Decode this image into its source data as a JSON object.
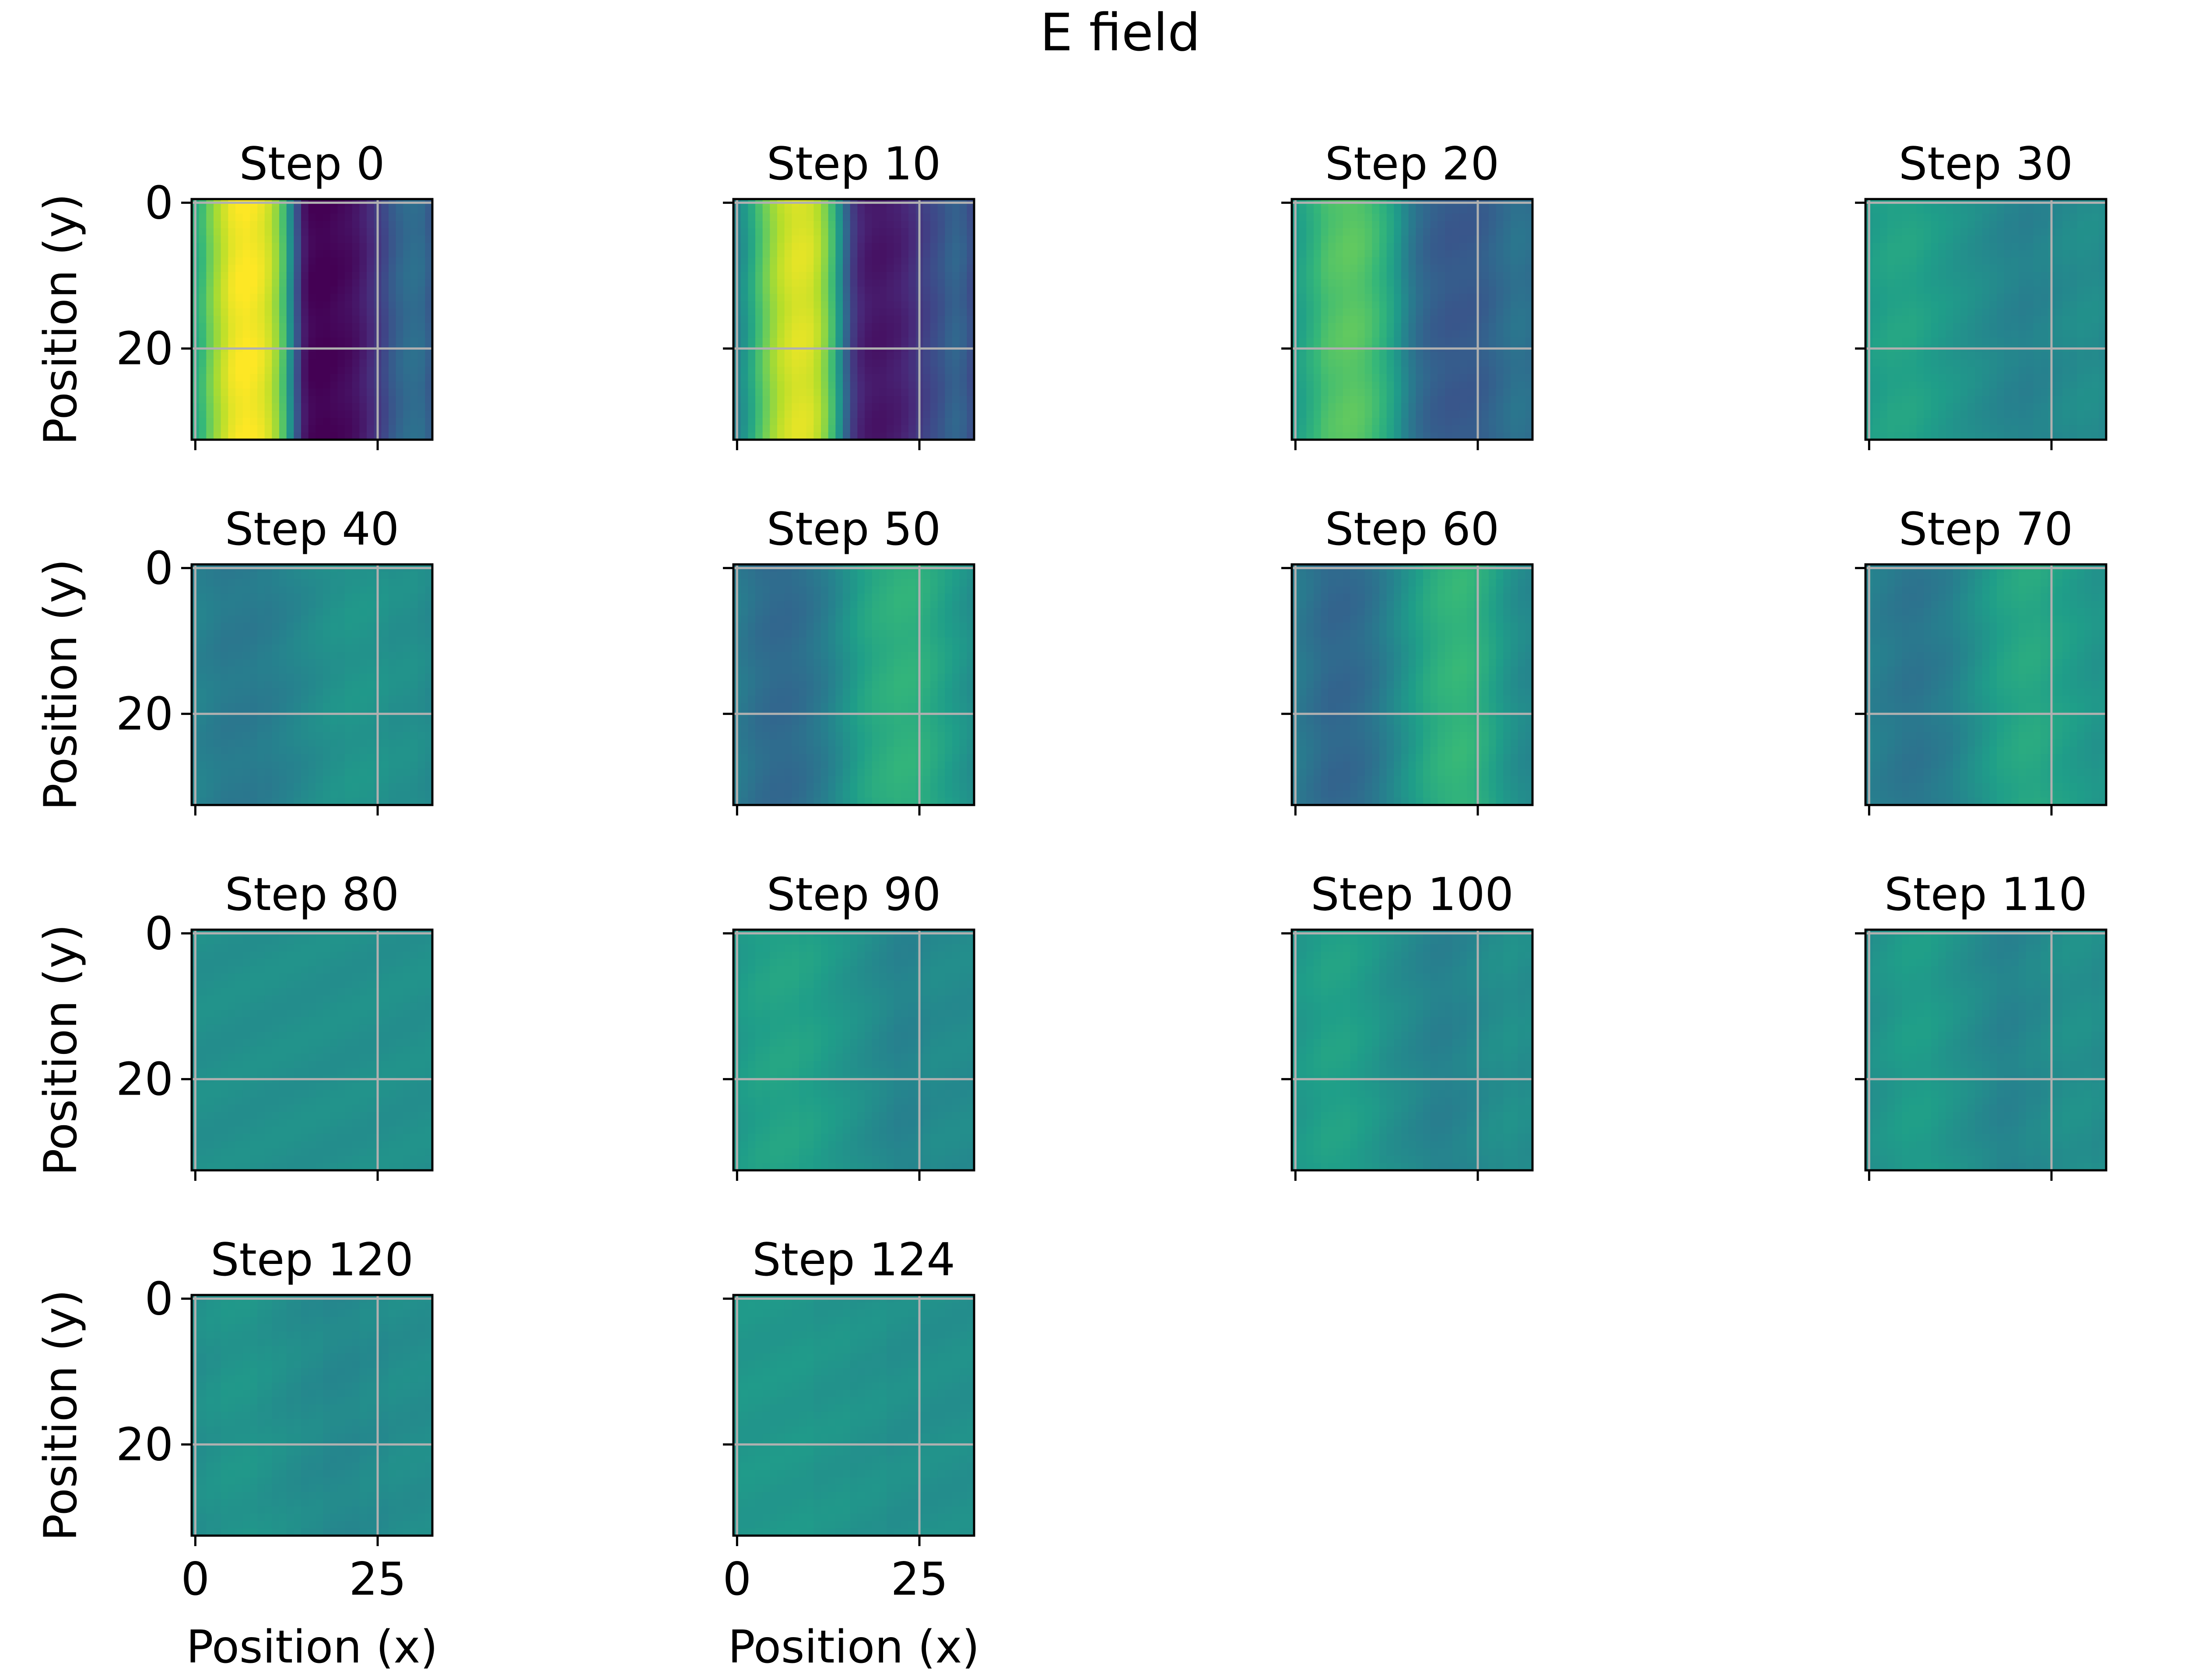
{
  "figure": {
    "title": "E field",
    "colormap": "viridis",
    "grid_color": "#b0b0b0",
    "axis_color": "#000000"
  },
  "chart_data": [
    {
      "type": "heatmap",
      "title": "Step 0",
      "xlabel": "",
      "ylabel": "Position (y)",
      "xlim": [
        -0.5,
        32.5
      ],
      "ylim": [
        32.5,
        -0.5
      ],
      "x_ticks": [
        0,
        25
      ],
      "y_ticks": [
        0,
        20
      ],
      "x_ticklabels_shown": false,
      "y_ticklabels_shown": true,
      "grid": true,
      "column_profile": [
        0.62,
        0.68,
        0.78,
        0.86,
        0.92,
        0.97,
        0.99,
        1.0,
        0.99,
        0.97,
        0.93,
        0.85,
        0.72,
        0.5,
        0.25,
        0.06,
        0.01,
        0.0,
        0.0,
        0.01,
        0.02,
        0.03,
        0.05,
        0.08,
        0.12,
        0.17,
        0.22,
        0.28,
        0.32,
        0.35,
        0.36,
        0.35,
        0.3
      ]
    },
    {
      "type": "heatmap",
      "title": "Step 10",
      "xlabel": "",
      "ylabel": "",
      "xlim": [
        -0.5,
        32.5
      ],
      "ylim": [
        32.5,
        -0.5
      ],
      "x_ticks": [
        0,
        25
      ],
      "y_ticks": [
        0,
        20
      ],
      "x_ticklabels_shown": false,
      "y_ticklabels_shown": false,
      "grid": true,
      "column_profile": [
        0.45,
        0.52,
        0.6,
        0.7,
        0.78,
        0.85,
        0.9,
        0.93,
        0.95,
        0.95,
        0.94,
        0.9,
        0.82,
        0.7,
        0.52,
        0.32,
        0.17,
        0.1,
        0.07,
        0.06,
        0.06,
        0.07,
        0.08,
        0.1,
        0.13,
        0.17,
        0.2,
        0.23,
        0.26,
        0.3,
        0.32,
        0.3,
        0.25
      ]
    },
    {
      "type": "heatmap",
      "title": "Step 20",
      "xlabel": "",
      "ylabel": "",
      "xlim": [
        -0.5,
        32.5
      ],
      "ylim": [
        32.5,
        -0.5
      ],
      "x_ticks": [
        0,
        25
      ],
      "y_ticks": [
        0,
        20
      ],
      "x_ticklabels_shown": false,
      "y_ticklabels_shown": false,
      "grid": true,
      "column_profile": [
        0.55,
        0.58,
        0.62,
        0.66,
        0.7,
        0.72,
        0.73,
        0.74,
        0.74,
        0.73,
        0.71,
        0.68,
        0.64,
        0.59,
        0.53,
        0.46,
        0.4,
        0.35,
        0.32,
        0.3,
        0.29,
        0.28,
        0.28,
        0.28,
        0.28,
        0.29,
        0.3,
        0.32,
        0.34,
        0.36,
        0.38,
        0.38,
        0.37
      ]
    },
    {
      "type": "heatmap",
      "title": "Step 30",
      "xlabel": "",
      "ylabel": "",
      "xlim": [
        -0.5,
        32.5
      ],
      "ylim": [
        32.5,
        -0.5
      ],
      "x_ticks": [
        0,
        25
      ],
      "y_ticks": [
        0,
        20
      ],
      "x_ticklabels_shown": false,
      "y_ticklabels_shown": false,
      "grid": true,
      "column_profile": [
        0.55,
        0.56,
        0.57,
        0.58,
        0.58,
        0.58,
        0.58,
        0.57,
        0.56,
        0.55,
        0.54,
        0.53,
        0.52,
        0.51,
        0.5,
        0.49,
        0.48,
        0.47,
        0.46,
        0.45,
        0.45,
        0.44,
        0.44,
        0.45,
        0.45,
        0.46,
        0.47,
        0.48,
        0.48,
        0.49,
        0.49,
        0.49,
        0.48
      ]
    },
    {
      "type": "heatmap",
      "title": "Step 40",
      "xlabel": "",
      "ylabel": "Position (y)",
      "xlim": [
        -0.5,
        32.5
      ],
      "ylim": [
        32.5,
        -0.5
      ],
      "x_ticks": [
        0,
        25
      ],
      "y_ticks": [
        0,
        20
      ],
      "x_ticklabels_shown": false,
      "y_ticklabels_shown": true,
      "grid": true,
      "column_profile": [
        0.45,
        0.44,
        0.43,
        0.42,
        0.41,
        0.41,
        0.41,
        0.41,
        0.41,
        0.42,
        0.42,
        0.43,
        0.44,
        0.45,
        0.46,
        0.47,
        0.48,
        0.49,
        0.5,
        0.51,
        0.51,
        0.52,
        0.52,
        0.52,
        0.52,
        0.51,
        0.51,
        0.5,
        0.5,
        0.5,
        0.5,
        0.49,
        0.48
      ]
    },
    {
      "type": "heatmap",
      "title": "Step 50",
      "xlabel": "",
      "ylabel": "",
      "xlim": [
        -0.5,
        32.5
      ],
      "ylim": [
        32.5,
        -0.5
      ],
      "x_ticks": [
        0,
        25
      ],
      "y_ticks": [
        0,
        20
      ],
      "x_ticklabels_shown": false,
      "y_ticklabels_shown": false,
      "grid": true,
      "column_profile": [
        0.42,
        0.4,
        0.38,
        0.36,
        0.35,
        0.34,
        0.34,
        0.34,
        0.35,
        0.36,
        0.38,
        0.4,
        0.42,
        0.45,
        0.48,
        0.51,
        0.54,
        0.57,
        0.59,
        0.61,
        0.62,
        0.63,
        0.64,
        0.64,
        0.64,
        0.63,
        0.62,
        0.6,
        0.58,
        0.56,
        0.54,
        0.52,
        0.5
      ]
    },
    {
      "type": "heatmap",
      "title": "Step 60",
      "xlabel": "",
      "ylabel": "",
      "xlim": [
        -0.5,
        32.5
      ],
      "ylim": [
        32.5,
        -0.5
      ],
      "x_ticks": [
        0,
        25
      ],
      "y_ticks": [
        0,
        20
      ],
      "x_ticklabels_shown": false,
      "y_ticklabels_shown": false,
      "grid": true,
      "column_profile": [
        0.42,
        0.4,
        0.38,
        0.36,
        0.34,
        0.33,
        0.33,
        0.33,
        0.34,
        0.35,
        0.37,
        0.39,
        0.42,
        0.45,
        0.48,
        0.51,
        0.54,
        0.57,
        0.6,
        0.62,
        0.64,
        0.65,
        0.66,
        0.66,
        0.65,
        0.63,
        0.61,
        0.58,
        0.55,
        0.52,
        0.5,
        0.48,
        0.47
      ]
    },
    {
      "type": "heatmap",
      "title": "Step 70",
      "xlabel": "",
      "ylabel": "",
      "xlim": [
        -0.5,
        32.5
      ],
      "ylim": [
        32.5,
        -0.5
      ],
      "x_ticks": [
        0,
        25
      ],
      "y_ticks": [
        0,
        20
      ],
      "x_ticklabels_shown": false,
      "y_ticklabels_shown": false,
      "grid": true,
      "column_profile": [
        0.44,
        0.43,
        0.42,
        0.41,
        0.4,
        0.39,
        0.39,
        0.39,
        0.4,
        0.41,
        0.42,
        0.43,
        0.45,
        0.47,
        0.49,
        0.51,
        0.53,
        0.55,
        0.57,
        0.58,
        0.59,
        0.6,
        0.6,
        0.6,
        0.59,
        0.58,
        0.57,
        0.56,
        0.55,
        0.54,
        0.53,
        0.52,
        0.52
      ]
    },
    {
      "type": "heatmap",
      "title": "Step 80",
      "xlabel": "",
      "ylabel": "Position (y)",
      "xlim": [
        -0.5,
        32.5
      ],
      "ylim": [
        32.5,
        -0.5
      ],
      "x_ticks": [
        0,
        25
      ],
      "y_ticks": [
        0,
        20
      ],
      "x_ticklabels_shown": false,
      "y_ticklabels_shown": true,
      "grid": true,
      "column_profile": [
        0.5,
        0.5,
        0.5,
        0.5,
        0.5,
        0.5,
        0.5,
        0.5,
        0.5,
        0.5,
        0.5,
        0.5,
        0.5,
        0.5,
        0.5,
        0.5,
        0.5,
        0.5,
        0.5,
        0.5,
        0.5,
        0.5,
        0.5,
        0.5,
        0.5,
        0.5,
        0.5,
        0.5,
        0.5,
        0.5,
        0.5,
        0.5,
        0.5
      ]
    },
    {
      "type": "heatmap",
      "title": "Step 90",
      "xlabel": "",
      "ylabel": "",
      "xlim": [
        -0.5,
        32.5
      ],
      "ylim": [
        32.5,
        -0.5
      ],
      "x_ticks": [
        0,
        25
      ],
      "y_ticks": [
        0,
        20
      ],
      "x_ticklabels_shown": false,
      "y_ticklabels_shown": false,
      "grid": true,
      "column_profile": [
        0.54,
        0.55,
        0.56,
        0.57,
        0.57,
        0.58,
        0.58,
        0.58,
        0.58,
        0.57,
        0.57,
        0.56,
        0.55,
        0.54,
        0.53,
        0.52,
        0.51,
        0.5,
        0.49,
        0.48,
        0.47,
        0.46,
        0.45,
        0.45,
        0.45,
        0.46,
        0.47,
        0.48,
        0.48,
        0.48,
        0.48,
        0.48,
        0.48
      ]
    },
    {
      "type": "heatmap",
      "title": "Step 100",
      "xlabel": "",
      "ylabel": "",
      "xlim": [
        -0.5,
        32.5
      ],
      "ylim": [
        32.5,
        -0.5
      ],
      "x_ticks": [
        0,
        25
      ],
      "y_ticks": [
        0,
        20
      ],
      "x_ticklabels_shown": false,
      "y_ticklabels_shown": false,
      "grid": true,
      "column_profile": [
        0.53,
        0.54,
        0.55,
        0.56,
        0.57,
        0.57,
        0.57,
        0.57,
        0.56,
        0.55,
        0.54,
        0.53,
        0.51,
        0.5,
        0.49,
        0.48,
        0.47,
        0.46,
        0.45,
        0.44,
        0.44,
        0.44,
        0.45,
        0.45,
        0.46,
        0.47,
        0.48,
        0.49,
        0.49,
        0.5,
        0.5,
        0.49,
        0.49
      ]
    },
    {
      "type": "heatmap",
      "title": "Step 110",
      "xlabel": "",
      "ylabel": "",
      "xlim": [
        -0.5,
        32.5
      ],
      "ylim": [
        32.5,
        -0.5
      ],
      "x_ticks": [
        0,
        25
      ],
      "y_ticks": [
        0,
        20
      ],
      "x_ticklabels_shown": false,
      "y_ticklabels_shown": false,
      "grid": true,
      "column_profile": [
        0.5,
        0.51,
        0.52,
        0.53,
        0.54,
        0.55,
        0.55,
        0.55,
        0.55,
        0.54,
        0.53,
        0.52,
        0.51,
        0.5,
        0.49,
        0.48,
        0.47,
        0.46,
        0.45,
        0.45,
        0.45,
        0.46,
        0.47,
        0.47,
        0.48,
        0.49,
        0.49,
        0.5,
        0.5,
        0.5,
        0.5,
        0.49,
        0.49
      ]
    },
    {
      "type": "heatmap",
      "title": "Step 120",
      "xlabel": "Position (x)",
      "ylabel": "Position (y)",
      "xlim": [
        -0.5,
        32.5
      ],
      "ylim": [
        32.5,
        -0.5
      ],
      "x_ticks": [
        0,
        25
      ],
      "y_ticks": [
        0,
        20
      ],
      "x_ticklabels_shown": true,
      "y_ticklabels_shown": true,
      "grid": true,
      "column_profile": [
        0.5,
        0.5,
        0.51,
        0.51,
        0.52,
        0.52,
        0.52,
        0.52,
        0.52,
        0.51,
        0.51,
        0.5,
        0.5,
        0.49,
        0.49,
        0.48,
        0.48,
        0.48,
        0.47,
        0.47,
        0.47,
        0.47,
        0.47,
        0.48,
        0.48,
        0.48,
        0.48,
        0.49,
        0.49,
        0.49,
        0.49,
        0.49,
        0.49
      ]
    },
    {
      "type": "heatmap",
      "title": "Step 124",
      "xlabel": "Position (x)",
      "ylabel": "",
      "xlim": [
        -0.5,
        32.5
      ],
      "ylim": [
        32.5,
        -0.5
      ],
      "x_ticks": [
        0,
        25
      ],
      "y_ticks": [
        0,
        20
      ],
      "x_ticklabels_shown": true,
      "y_ticklabels_shown": false,
      "grid": true,
      "column_profile": [
        0.53,
        0.53,
        0.53,
        0.53,
        0.53,
        0.53,
        0.53,
        0.53,
        0.53,
        0.53,
        0.53,
        0.52,
        0.52,
        0.52,
        0.52,
        0.52,
        0.51,
        0.51,
        0.51,
        0.51,
        0.51,
        0.5,
        0.5,
        0.5,
        0.5,
        0.5,
        0.5,
        0.5,
        0.5,
        0.5,
        0.5,
        0.5,
        0.5
      ]
    }
  ]
}
